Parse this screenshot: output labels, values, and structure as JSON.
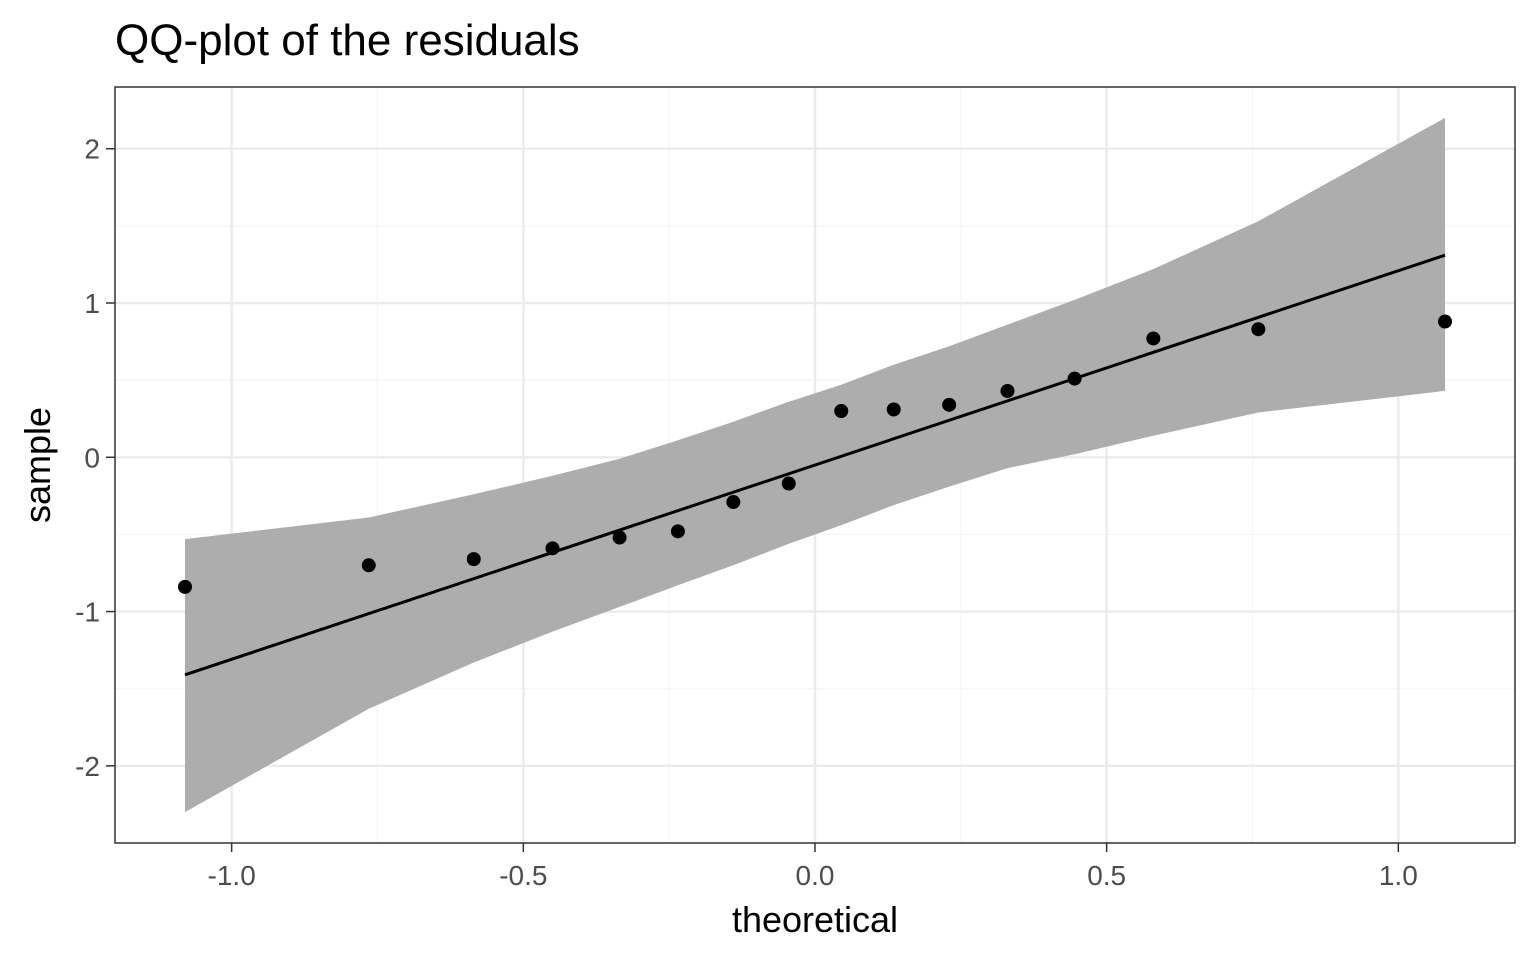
{
  "chart_data": {
    "type": "scatter",
    "title": "QQ-plot of the residuals",
    "xlabel": "theoretical",
    "ylabel": "sample",
    "xlim": [
      -1.2,
      1.2
    ],
    "ylim": [
      -2.5,
      2.4
    ],
    "x_ticks": [
      -1.0,
      -0.5,
      0.0,
      0.5,
      1.0
    ],
    "x_tick_labels": [
      "-1.0",
      "-0.5",
      "0.0",
      "0.5",
      "1.0"
    ],
    "y_ticks": [
      -2,
      -1,
      0,
      1,
      2
    ],
    "y_tick_labels": [
      "-2",
      "-1",
      "0",
      "1",
      "2"
    ],
    "grid": true,
    "points": [
      {
        "x": -1.08,
        "y": -0.84
      },
      {
        "x": -0.765,
        "y": -0.7
      },
      {
        "x": -0.585,
        "y": -0.66
      },
      {
        "x": -0.45,
        "y": -0.59
      },
      {
        "x": -0.335,
        "y": -0.52
      },
      {
        "x": -0.235,
        "y": -0.48
      },
      {
        "x": -0.14,
        "y": -0.29
      },
      {
        "x": -0.045,
        "y": -0.17
      },
      {
        "x": 0.045,
        "y": 0.3
      },
      {
        "x": 0.135,
        "y": 0.31
      },
      {
        "x": 0.23,
        "y": 0.34
      },
      {
        "x": 0.33,
        "y": 0.43
      },
      {
        "x": 0.445,
        "y": 0.51
      },
      {
        "x": 0.58,
        "y": 0.77
      },
      {
        "x": 0.76,
        "y": 0.83
      },
      {
        "x": 1.08,
        "y": 0.88
      }
    ],
    "reference_line": {
      "x": [
        -1.08,
        1.08
      ],
      "y": [
        -1.41,
        1.31
      ]
    },
    "confidence_band": {
      "x": [
        -1.08,
        -0.765,
        -0.585,
        -0.45,
        -0.335,
        -0.235,
        -0.14,
        -0.045,
        0.045,
        0.135,
        0.23,
        0.33,
        0.445,
        0.58,
        0.76,
        1.08
      ],
      "upper": [
        -0.53,
        -0.39,
        -0.24,
        -0.12,
        -0.01,
        0.11,
        0.23,
        0.36,
        0.47,
        0.6,
        0.72,
        0.86,
        1.02,
        1.22,
        1.53,
        2.2
      ],
      "lower": [
        -2.3,
        -1.63,
        -1.33,
        -1.13,
        -0.97,
        -0.83,
        -0.7,
        -0.56,
        -0.44,
        -0.31,
        -0.19,
        -0.07,
        0.02,
        0.14,
        0.29,
        0.43
      ]
    },
    "colors": {
      "points": "#000000",
      "line": "#000000",
      "band": "#adadad",
      "grid_major": "#ebebeb",
      "grid_minor": "#f5f5f5",
      "panel_border": "#333333",
      "tick_label": "#4d4d4d"
    }
  }
}
